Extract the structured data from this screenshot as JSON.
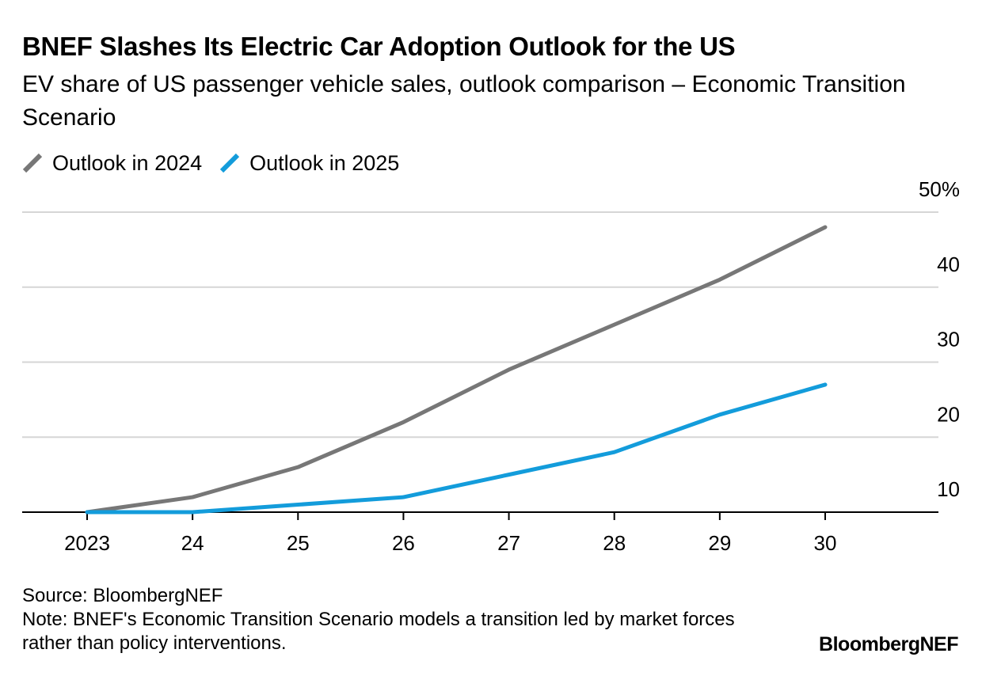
{
  "header": {
    "title": "BNEF Slashes Its Electric Car Adoption Outlook for the US",
    "subtitle": "EV share of US passenger vehicle sales, outlook comparison – Economic Transition Scenario"
  },
  "colors": {
    "series_2024": "#777777",
    "series_2025": "#139cdb",
    "grid": "#d6d6d6",
    "axis": "#000000"
  },
  "chart_data": {
    "type": "line",
    "title": "BNEF Slashes Its Electric Car Adoption Outlook for the US",
    "subtitle": "EV share of US passenger vehicle sales, outlook comparison – Economic Transition Scenario",
    "x": [
      2023,
      2024,
      2025,
      2026,
      2027,
      2028,
      2029,
      2030
    ],
    "x_tick_labels": [
      "2023",
      "24",
      "25",
      "26",
      "27",
      "28",
      "29",
      "30"
    ],
    "y_tick_values": [
      10,
      20,
      30,
      40,
      50
    ],
    "y_tick_labels": [
      "10",
      "20",
      "30",
      "40",
      "50%"
    ],
    "ylim": [
      10,
      50
    ],
    "y_axis_side": "right",
    "grid": true,
    "legend_position": "top-left",
    "series": [
      {
        "name": "Outlook in 2024",
        "color": "#777777",
        "values": [
          10,
          12,
          16,
          22,
          29,
          35,
          41,
          48
        ]
      },
      {
        "name": "Outlook in 2025",
        "color": "#139cdb",
        "values": [
          10,
          10,
          11,
          12,
          15,
          18,
          23,
          27
        ]
      }
    ]
  },
  "footer": {
    "source": "Source: BloombergNEF",
    "note": "Note: BNEF's Economic Transition Scenario models a transition led by market forces rather than policy interventions."
  },
  "brand": "BloombergNEF"
}
